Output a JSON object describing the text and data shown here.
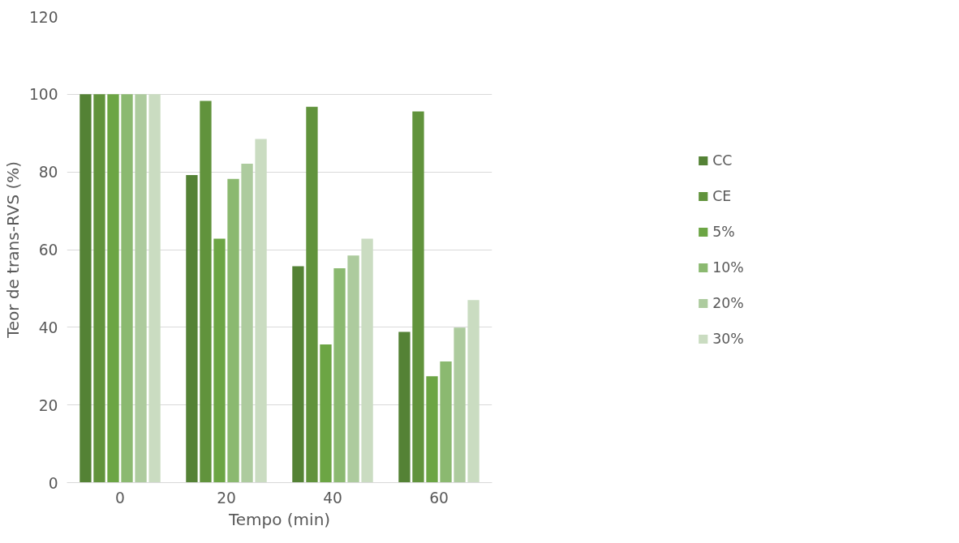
{
  "chart_data": {
    "type": "bar",
    "xlabel": "Tempo (min)",
    "ylabel": "Teor de trans-RVS (%)",
    "categories": [
      "0",
      "20",
      "40",
      "60"
    ],
    "series": [
      {
        "name": "CC",
        "color": "#548235",
        "values": [
          100,
          79.2,
          55.7,
          38.8
        ]
      },
      {
        "name": "CE",
        "color": "#61933c",
        "values": [
          100,
          98.3,
          96.8,
          95.6
        ]
      },
      {
        "name": "5%",
        "color": "#6ca544",
        "values": [
          100,
          62.8,
          35.6,
          27.4
        ]
      },
      {
        "name": "10%",
        "color": "#8bb970",
        "values": [
          100,
          78.2,
          55.2,
          31.2
        ]
      },
      {
        "name": "20%",
        "color": "#adcb9e",
        "values": [
          100,
          82.1,
          58.5,
          39.9
        ]
      },
      {
        "name": "30%",
        "color": "#cadcc1",
        "values": [
          100,
          88.5,
          62.8,
          47.0
        ]
      }
    ],
    "ylim": [
      0,
      120
    ],
    "yticks": [
      0,
      20,
      40,
      60,
      80,
      100,
      120
    ],
    "grid": "y",
    "legend": "right"
  }
}
